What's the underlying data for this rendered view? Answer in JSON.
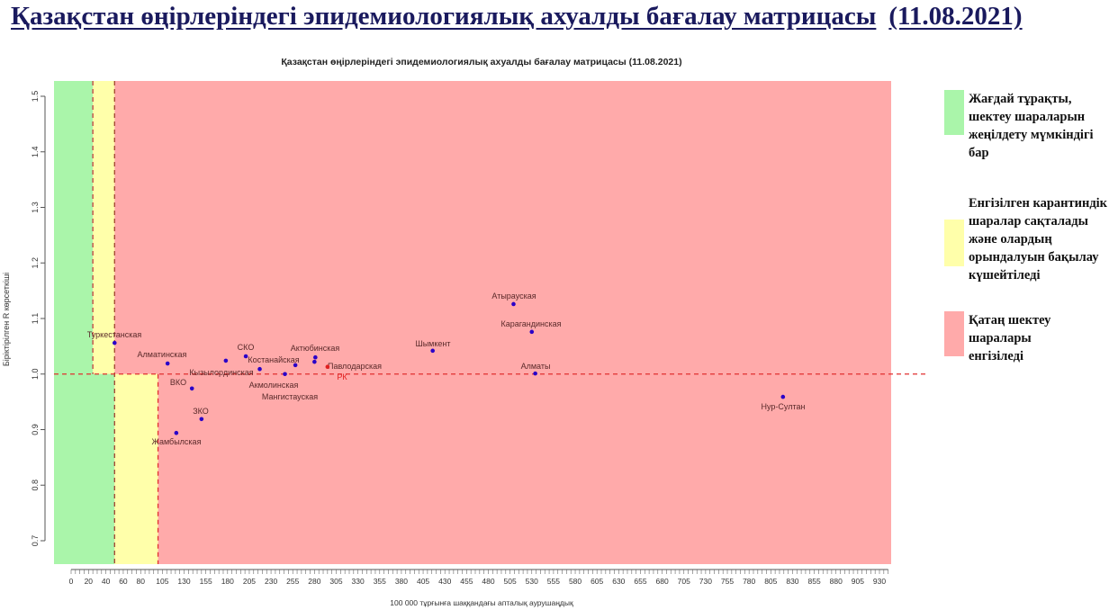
{
  "header": {
    "title": "Қазақстан өңірлеріндегі эпидемиологиялық ахуалды бағалау матрицасы",
    "date": "(11.08.2021)"
  },
  "legend": [
    {
      "label": "Жағдай тұрақты, шектеу шараларын жеңілдету мүмкіндігі бар",
      "color": "#aaf5aa"
    },
    {
      "label": "Енгізілген карантиндік шаралар сақталады және олардың орындалуын бақылау күшейтіледі",
      "color": "#ffffaa"
    },
    {
      "label": "Қатаң шектеу шаралары енгізіледі",
      "color": "#ffaaaa"
    }
  ],
  "chart_data": {
    "type": "scatter",
    "title": "Қазақстан өңірлеріндегі эпидемиологиялық ахуалды бағалау матрицасы  (11.08.2021)",
    "xlabel": "100 000 тұрғынға шаққандағы апталық аурушаңдық",
    "ylabel": "Біріктірілген R көрсеткіші",
    "xlim": [
      -20,
      943
    ],
    "ylim": [
      0.658,
      1.527
    ],
    "xticks": [
      0,
      20,
      40,
      60,
      80,
      105,
      130,
      155,
      180,
      205,
      230,
      255,
      280,
      305,
      330,
      355,
      380,
      405,
      430,
      455,
      480,
      505,
      530,
      555,
      580,
      605,
      630,
      655,
      680,
      705,
      730,
      755,
      780,
      805,
      830,
      855,
      880,
      905,
      930
    ],
    "yticks": [
      0.7,
      0.8,
      0.9,
      1.0,
      1.1,
      1.2,
      1.3,
      1.4,
      1.5
    ],
    "zones": {
      "green_max_x": 25,
      "yellow_max_x_upper": 50,
      "yellow_max_x_lower": 100,
      "r_threshold": 1.0
    },
    "points": [
      {
        "name": "Туркестанская",
        "x": 50,
        "y": 1.056
      },
      {
        "name": "Алматинская",
        "x": 111,
        "y": 1.019
      },
      {
        "name": "ВКО",
        "x": 139,
        "y": 0.974
      },
      {
        "name": "ЗКО",
        "x": 150,
        "y": 0.919
      },
      {
        "name": "Жамбылская",
        "x": 121,
        "y": 0.894
      },
      {
        "name": "Кызылординская",
        "x": 178,
        "y": 1.024
      },
      {
        "name": "СКО",
        "x": 201,
        "y": 1.032
      },
      {
        "name": "Костанайская",
        "x": 217,
        "y": 1.009
      },
      {
        "name": "Акмолинская",
        "x": 246,
        "y": 1.0
      },
      {
        "name": "Мангистауская",
        "x": 258,
        "y": 1.016
      },
      {
        "name": "Актюбинская",
        "x": 281,
        "y": 1.03
      },
      {
        "name": "Павлодарская",
        "x": 280,
        "y": 1.022
      },
      {
        "name": "РК",
        "x": 295,
        "y": 1.013
      },
      {
        "name": "Шымкент",
        "x": 416,
        "y": 1.042
      },
      {
        "name": "Атырауская",
        "x": 509,
        "y": 1.126
      },
      {
        "name": "Карагандинская",
        "x": 530,
        "y": 1.076
      },
      {
        "name": "Алматы",
        "x": 534,
        "y": 1.001
      },
      {
        "name": "Нур-Султан",
        "x": 819,
        "y": 0.959
      }
    ],
    "colors": {
      "point": "#2a00c8",
      "rk": "#e02020",
      "threshold": "#e03030"
    }
  }
}
